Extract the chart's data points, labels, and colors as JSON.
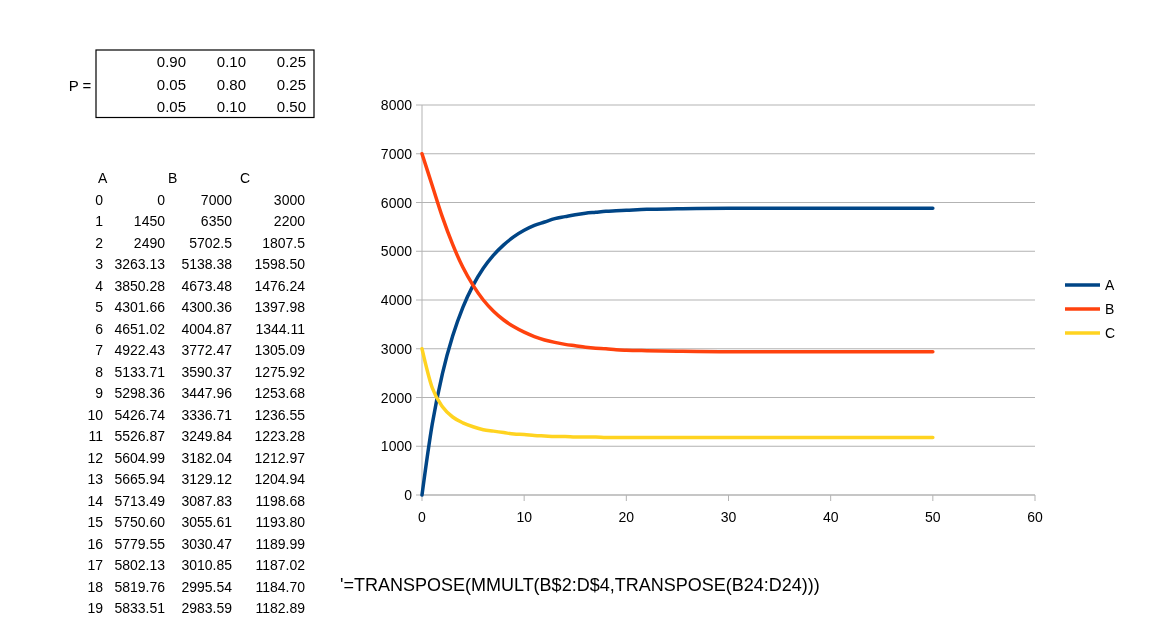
{
  "chart_data": {
    "type": "line",
    "x": [
      0,
      1,
      2,
      3,
      4,
      5,
      6,
      7,
      8,
      9,
      10,
      11,
      12,
      13,
      14,
      15,
      16,
      17,
      18,
      19,
      20,
      22,
      25,
      30,
      35,
      40,
      45,
      50
    ],
    "series": [
      {
        "name": "A",
        "color": "#004586",
        "values": [
          0,
          1450,
          2490,
          3260,
          3850,
          4300,
          4650,
          4920,
          5130,
          5300,
          5430,
          5530,
          5600,
          5670,
          5710,
          5750,
          5780,
          5800,
          5820,
          5830,
          5840,
          5860,
          5870,
          5880,
          5880,
          5880,
          5880,
          5880
        ]
      },
      {
        "name": "B",
        "color": "#ff420e",
        "values": [
          7000,
          6350,
          5700,
          5140,
          4670,
          4300,
          4000,
          3770,
          3590,
          3450,
          3340,
          3250,
          3180,
          3130,
          3090,
          3060,
          3030,
          3010,
          3000,
          2980,
          2970,
          2960,
          2950,
          2940,
          2940,
          2940,
          2940,
          2940
        ]
      },
      {
        "name": "C",
        "color": "#ffd320",
        "values": [
          3000,
          2200,
          1810,
          1600,
          1480,
          1400,
          1340,
          1310,
          1280,
          1250,
          1240,
          1220,
          1210,
          1200,
          1200,
          1190,
          1190,
          1190,
          1180,
          1180,
          1180,
          1180,
          1180,
          1180,
          1180,
          1180,
          1180,
          1180
        ]
      }
    ],
    "xlim": [
      0,
      60
    ],
    "xticks": [
      0,
      10,
      20,
      30,
      40,
      50,
      60
    ],
    "ylim": [
      0,
      8000
    ],
    "yticks": [
      0,
      1000,
      2000,
      3000,
      4000,
      5000,
      6000,
      7000,
      8000
    ],
    "grid": "y",
    "legend": "right",
    "marker": "none",
    "line_style": "solid",
    "annotations": [
      "P =",
      "0.90 0.10 0.25",
      "0.05 0.80 0.25",
      "0.05 0.10 0.50",
      "A B C",
      "0 0 7000 3000",
      "1 1450 6350 2200",
      "2 2490 5702.5 1807.5",
      "3 3263.13 5138.38 1598.50",
      "4 3850.28 4673.48 1476.24",
      "5 4301.66 4300.36 1397.98",
      "6 4651.02 4004.87 1344.11",
      "7 4922.43 3772.47 1305.09",
      "8 5133.71 3590.37 1275.92",
      "9 5298.36 3447.96 1253.68",
      "10 5426.74 3336.71 1236.55",
      "11 5526.87 3249.84 1223.28",
      "12 5604.99 3182.04 1212.97",
      "13 5665.94 3129.12 1204.94",
      "14 5713.49 3087.83 1198.68",
      "15 5750.60 3055.61 1193.80",
      "16 5779.55 3030.47 1189.99",
      "17 5802.13 3010.85 1187.02",
      "18 5819.76 2995.54 1184.70",
      "19 5833.51 2983.59 1182.89",
      "'=TRANSPOSE(MMULT(B$2:D$4,TRANSPOSE(B24:D24)))"
    ]
  }
}
